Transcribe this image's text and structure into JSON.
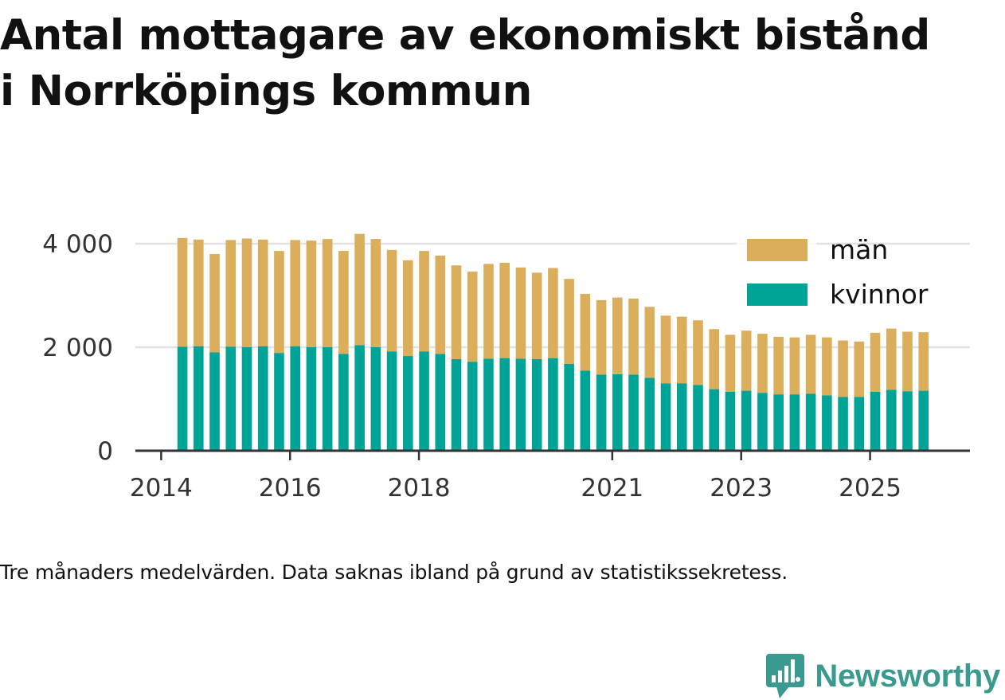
{
  "title_lines": [
    "Antal mottagare av ekonomiskt bistånd",
    "i Norrköpings kommun"
  ],
  "footnote": "Tre månaders medelvärden. Data saknas ibland på grund av statistikssekretess.",
  "brand": {
    "name": "Newsworthy",
    "logo_icon": "chart-speech-bubble-icon",
    "color": "#3a9a90"
  },
  "chart_data": {
    "type": "bar",
    "stacked": true,
    "title": "Antal mottagare av ekonomiskt bistånd i Norrköpings kommun",
    "xlabel": "",
    "ylabel": "",
    "ylim": [
      0,
      4400
    ],
    "yticks": [
      0,
      2000,
      4000
    ],
    "ytick_labels": [
      "0",
      "2 000",
      "4 000"
    ],
    "xlim": [
      2013.6,
      2026.55
    ],
    "xticks": [
      2014,
      2016,
      2018,
      2021,
      2023,
      2025
    ],
    "xtick_labels": [
      "2014",
      "2016",
      "2018",
      "2021",
      "2023",
      "2025"
    ],
    "x": [
      2014.33,
      2014.58,
      2014.83,
      2015.08,
      2015.33,
      2015.58,
      2015.83,
      2016.08,
      2016.33,
      2016.58,
      2016.83,
      2017.08,
      2017.33,
      2017.58,
      2017.83,
      2018.08,
      2018.33,
      2018.58,
      2018.83,
      2019.08,
      2019.33,
      2019.58,
      2019.83,
      2020.08,
      2020.33,
      2020.58,
      2020.83,
      2021.08,
      2021.33,
      2021.58,
      2021.83,
      2022.08,
      2022.33,
      2022.58,
      2022.83,
      2023.08,
      2023.33,
      2023.58,
      2023.83,
      2024.08,
      2024.33,
      2024.58,
      2024.83,
      2025.08,
      2025.33,
      2025.58,
      2025.83
    ],
    "grid": true,
    "legend": "top-right",
    "series": [
      {
        "name": "kvinnor",
        "color": "#00a497",
        "values": [
          2010,
          2020,
          1900,
          2010,
          2000,
          2020,
          1890,
          2020,
          2000,
          2000,
          1870,
          2040,
          2000,
          1920,
          1830,
          1920,
          1870,
          1770,
          1720,
          1780,
          1790,
          1780,
          1770,
          1790,
          1680,
          1550,
          1470,
          1480,
          1470,
          1410,
          1300,
          1300,
          1270,
          1190,
          1140,
          1160,
          1120,
          1090,
          1090,
          1100,
          1070,
          1040,
          1040,
          1140,
          1180,
          1150,
          1160
        ]
      },
      {
        "name": "män",
        "color": "#dbae5c",
        "values": [
          2100,
          2060,
          1900,
          2060,
          2100,
          2060,
          1970,
          2050,
          2060,
          2090,
          1990,
          2150,
          2090,
          1960,
          1850,
          1940,
          1900,
          1810,
          1740,
          1830,
          1840,
          1760,
          1670,
          1740,
          1640,
          1480,
          1440,
          1480,
          1470,
          1370,
          1310,
          1290,
          1250,
          1160,
          1100,
          1160,
          1140,
          1110,
          1100,
          1140,
          1120,
          1090,
          1070,
          1140,
          1180,
          1150,
          1130
        ]
      }
    ]
  }
}
